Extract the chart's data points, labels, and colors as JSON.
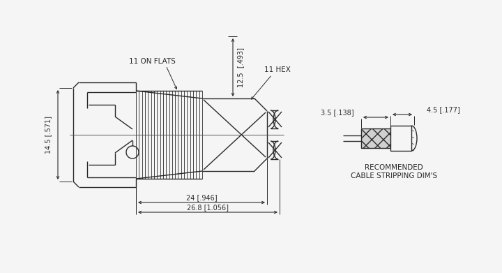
{
  "bg_color": "#f5f5f5",
  "line_color": "#2a2a2a",
  "labels": {
    "on_flats": "11 ON FLATS",
    "hex": "11 HEX",
    "dim_12_5": "12.5  [.493]",
    "dim_14_5": "14.5 [.571]",
    "dim_24": "24 [.946]",
    "dim_26_8": "26.8 [1.056]",
    "dim_3_5": "3.5 [.138]",
    "dim_4_5": "4.5 [.177]",
    "rec_line1": "RECOMMENDED",
    "rec_line2": "CABLE STRIPPING DIM'S"
  }
}
